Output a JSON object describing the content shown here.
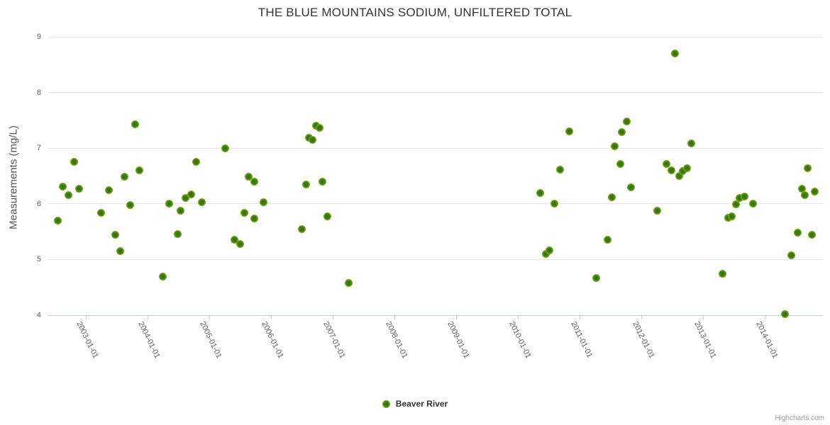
{
  "chart_data": {
    "type": "scatter",
    "title": "THE BLUE MOUNTAINS SODIUM, UNFILTERED TOTAL",
    "xlabel": "",
    "ylabel": "Measurements (mg/L)",
    "ylim": [
      4,
      9
    ],
    "xlim": [
      2002.39,
      2014.93
    ],
    "yticks": [
      4,
      5,
      6,
      7,
      8,
      9
    ],
    "xticks": [
      {
        "value": 2003,
        "label": "2003-01-01"
      },
      {
        "value": 2004,
        "label": "2004-01-01"
      },
      {
        "value": 2005,
        "label": "2005-01-01"
      },
      {
        "value": 2006,
        "label": "2006-01-01"
      },
      {
        "value": 2007,
        "label": "2007-01-01"
      },
      {
        "value": 2008,
        "label": "2008-01-01"
      },
      {
        "value": 2009,
        "label": "2009-01-01"
      },
      {
        "value": 2010,
        "label": "2010-01-01"
      },
      {
        "value": 2011,
        "label": "2011-01-01"
      },
      {
        "value": 2012,
        "label": "2012-01-01"
      },
      {
        "value": 2013,
        "label": "2013-01-01"
      },
      {
        "value": 2014,
        "label": "2014-01-01"
      }
    ],
    "grid": "horizontal",
    "legend_position": "bottom-center",
    "series": [
      {
        "name": "Beaver River",
        "marker_color": "#7eb71b",
        "marker_core_color": "#356f06",
        "points": [
          [
            2002.55,
            5.7
          ],
          [
            2002.63,
            6.31
          ],
          [
            2002.72,
            6.16
          ],
          [
            2002.81,
            6.75
          ],
          [
            2002.89,
            6.27
          ],
          [
            2003.24,
            5.84
          ],
          [
            2003.37,
            6.24
          ],
          [
            2003.47,
            5.45
          ],
          [
            2003.56,
            5.15
          ],
          [
            2003.62,
            6.49
          ],
          [
            2003.72,
            5.98
          ],
          [
            2003.8,
            7.43
          ],
          [
            2003.86,
            6.6
          ],
          [
            2004.24,
            4.69
          ],
          [
            2004.35,
            6.0
          ],
          [
            2004.48,
            5.46
          ],
          [
            2004.53,
            5.88
          ],
          [
            2004.61,
            6.11
          ],
          [
            2004.7,
            6.17
          ],
          [
            2004.79,
            6.76
          ],
          [
            2004.88,
            6.03
          ],
          [
            2005.26,
            6.99
          ],
          [
            2005.41,
            5.35
          ],
          [
            2005.5,
            5.28
          ],
          [
            2005.56,
            5.84
          ],
          [
            2005.63,
            6.49
          ],
          [
            2005.73,
            6.4
          ],
          [
            2005.73,
            5.74
          ],
          [
            2005.88,
            6.03
          ],
          [
            2006.49,
            5.54
          ],
          [
            2006.56,
            6.35
          ],
          [
            2006.61,
            7.19
          ],
          [
            2006.67,
            7.15
          ],
          [
            2006.73,
            7.4
          ],
          [
            2006.78,
            7.37
          ],
          [
            2006.83,
            6.4
          ],
          [
            2006.91,
            5.77
          ],
          [
            2007.25,
            4.58
          ],
          [
            2010.35,
            6.2
          ],
          [
            2010.44,
            5.1
          ],
          [
            2010.5,
            5.16
          ],
          [
            2010.58,
            6.0
          ],
          [
            2010.68,
            6.62
          ],
          [
            2010.82,
            7.3
          ],
          [
            2011.26,
            4.67
          ],
          [
            2011.45,
            5.35
          ],
          [
            2011.51,
            6.12
          ],
          [
            2011.56,
            7.04
          ],
          [
            2011.65,
            6.71
          ],
          [
            2011.68,
            7.29
          ],
          [
            2011.76,
            7.48
          ],
          [
            2011.82,
            6.3
          ],
          [
            2012.25,
            5.88
          ],
          [
            2012.4,
            6.71
          ],
          [
            2012.48,
            6.6
          ],
          [
            2012.54,
            8.7
          ],
          [
            2012.6,
            6.5
          ],
          [
            2012.66,
            6.59
          ],
          [
            2012.73,
            6.64
          ],
          [
            2012.8,
            7.08
          ],
          [
            2013.31,
            4.75
          ],
          [
            2013.4,
            5.75
          ],
          [
            2013.46,
            5.77
          ],
          [
            2013.52,
            5.99
          ],
          [
            2013.58,
            6.11
          ],
          [
            2013.66,
            6.13
          ],
          [
            2013.8,
            6.0
          ],
          [
            2014.32,
            4.02
          ],
          [
            2014.42,
            5.07
          ],
          [
            2014.52,
            5.48
          ],
          [
            2014.59,
            6.27
          ],
          [
            2014.64,
            6.16
          ],
          [
            2014.68,
            6.64
          ],
          [
            2014.75,
            5.44
          ],
          [
            2014.8,
            6.22
          ]
        ]
      }
    ]
  },
  "credits": {
    "label": "Highcharts.com"
  },
  "colors": {
    "grid": "#e6e6e6",
    "axis_line": "#c0d0e0",
    "tick_label": "#606060",
    "title": "#333333",
    "axis_title": "#555555",
    "legend_text": "#333333"
  }
}
